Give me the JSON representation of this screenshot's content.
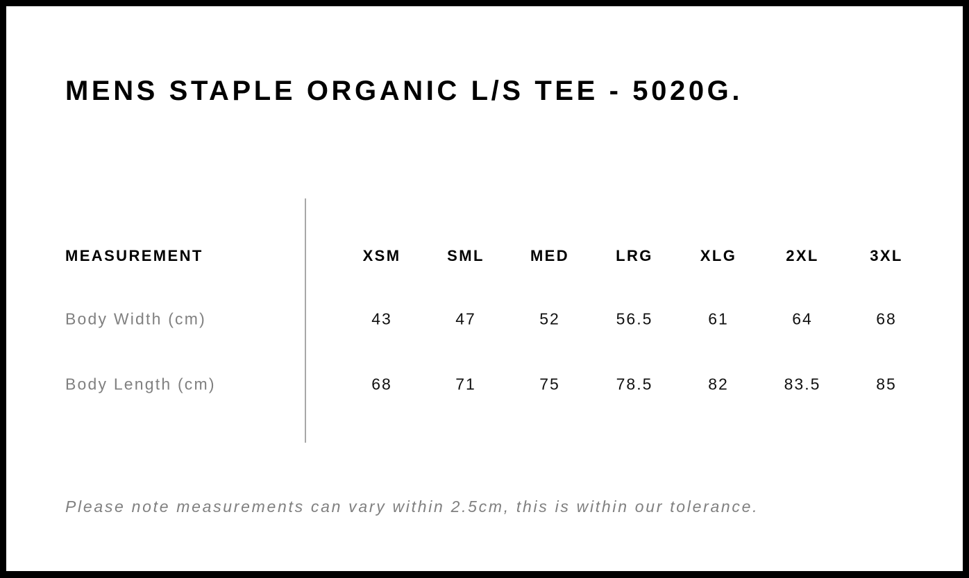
{
  "title": "MENS STAPLE ORGANIC L/S TEE - 5020G.",
  "table": {
    "header_label": "MEASUREMENT",
    "sizes": [
      "XSM",
      "SML",
      "MED",
      "LRG",
      "XLG",
      "2XL",
      "3XL"
    ],
    "rows": [
      {
        "label": "Body Width (cm)",
        "values": [
          "43",
          "47",
          "52",
          "56.5",
          "61",
          "64",
          "68"
        ]
      },
      {
        "label": "Body Length (cm)",
        "values": [
          "68",
          "71",
          "75",
          "78.5",
          "82",
          "83.5",
          "85"
        ]
      }
    ]
  },
  "note": "Please note measurements can vary within 2.5cm, this is within our tolerance.",
  "colors": {
    "border": "#000000",
    "label_text": "#808080",
    "divider": "#a8a8a8"
  }
}
